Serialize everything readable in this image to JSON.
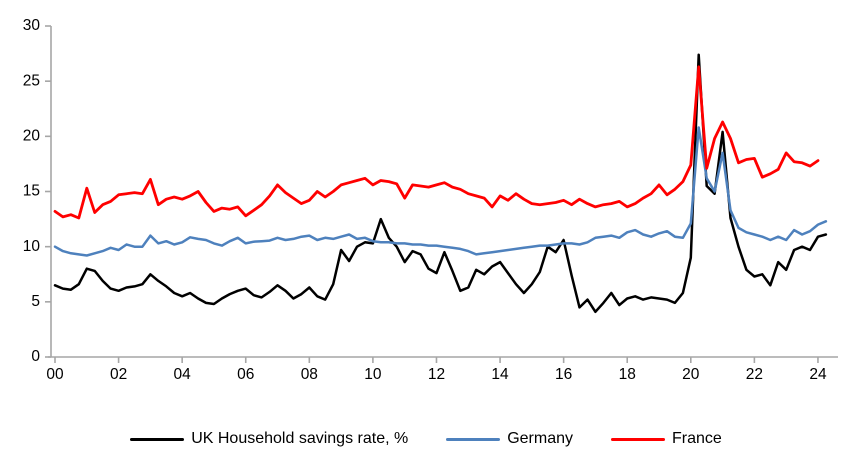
{
  "chart_data": {
    "type": "line",
    "title": "",
    "xlabel": "",
    "ylabel": "",
    "grid": false,
    "legend_position": "bottom",
    "axis_color": "#A6A6A6",
    "text_color": "#000000",
    "ylim": [
      0,
      30
    ],
    "y_ticks": [
      0,
      5,
      10,
      15,
      20,
      25,
      30
    ],
    "x_tick_labels": [
      "00",
      "02",
      "04",
      "06",
      "08",
      "10",
      "12",
      "14",
      "16",
      "18",
      "20",
      "22",
      "24"
    ],
    "x_tick_years": [
      2000,
      2002,
      2004,
      2006,
      2008,
      2010,
      2012,
      2014,
      2016,
      2018,
      2020,
      2022,
      2024
    ],
    "x_unit": "year, quarterly observations",
    "x_start": 2000.0,
    "x_step": 0.25,
    "series": [
      {
        "name": "UK Household savings rate, %",
        "color": "#000000",
        "stroke_width": 2.5,
        "values": [
          6.5,
          6.2,
          6.1,
          6.6,
          8.0,
          7.8,
          6.9,
          6.2,
          6.0,
          6.3,
          6.4,
          6.6,
          7.5,
          6.9,
          6.4,
          5.8,
          5.5,
          5.8,
          5.3,
          4.9,
          4.8,
          5.3,
          5.7,
          6.0,
          6.2,
          5.6,
          5.4,
          5.9,
          6.5,
          6.0,
          5.3,
          5.7,
          6.3,
          5.5,
          5.2,
          6.6,
          9.7,
          8.7,
          10.0,
          10.4,
          10.3,
          12.5,
          10.8,
          10.0,
          8.6,
          9.6,
          9.3,
          8.0,
          7.6,
          9.5,
          7.8,
          6.0,
          6.3,
          7.9,
          7.5,
          8.2,
          8.6,
          7.6,
          6.6,
          5.8,
          6.6,
          7.7,
          10.0,
          9.5,
          10.6,
          7.4,
          4.5,
          5.2,
          4.1,
          4.9,
          5.8,
          4.7,
          5.3,
          5.5,
          5.2,
          5.4,
          5.3,
          5.2,
          4.9,
          5.8,
          9.0,
          27.4,
          15.5,
          14.8,
          20.4,
          12.6,
          10.0,
          7.9,
          7.3,
          7.5,
          6.5,
          8.6,
          7.9,
          9.7,
          10.0,
          9.7,
          10.9,
          11.1
        ]
      },
      {
        "name": "Germany",
        "color": "#4E81BD",
        "stroke_width": 2.5,
        "values": [
          10.0,
          9.6,
          9.4,
          9.3,
          9.2,
          9.4,
          9.6,
          9.9,
          9.7,
          10.2,
          10.0,
          10.0,
          11.0,
          10.3,
          10.5,
          10.2,
          10.4,
          10.85,
          10.7,
          10.6,
          10.3,
          10.1,
          10.5,
          10.8,
          10.3,
          10.45,
          10.5,
          10.55,
          10.8,
          10.6,
          10.7,
          10.9,
          11.0,
          10.6,
          10.8,
          10.7,
          10.9,
          11.1,
          10.7,
          10.8,
          10.5,
          10.4,
          10.4,
          10.3,
          10.3,
          10.2,
          10.2,
          10.1,
          10.1,
          10.0,
          9.9,
          9.8,
          9.6,
          9.3,
          9.4,
          9.5,
          9.6,
          9.7,
          9.8,
          9.9,
          10.0,
          10.1,
          10.1,
          10.2,
          10.3,
          10.3,
          10.2,
          10.4,
          10.8,
          10.9,
          11.0,
          10.8,
          11.3,
          11.5,
          11.1,
          10.9,
          11.2,
          11.4,
          10.9,
          10.8,
          12.1,
          20.8,
          16.2,
          15.0,
          18.5,
          13.3,
          11.7,
          11.3,
          11.1,
          10.9,
          10.6,
          10.9,
          10.6,
          11.5,
          11.1,
          11.4,
          12.0,
          12.3
        ]
      },
      {
        "name": "France",
        "color": "#FF0000",
        "stroke_width": 2.8,
        "values": [
          13.2,
          12.7,
          12.9,
          12.6,
          15.3,
          13.1,
          13.8,
          14.1,
          14.7,
          14.8,
          14.9,
          14.8,
          16.1,
          13.8,
          14.3,
          14.5,
          14.3,
          14.6,
          15.0,
          14.0,
          13.2,
          13.5,
          13.4,
          13.6,
          12.8,
          13.3,
          13.8,
          14.6,
          15.6,
          14.9,
          14.4,
          13.9,
          14.2,
          15.0,
          14.5,
          15.0,
          15.6,
          15.8,
          16.0,
          16.2,
          15.6,
          16.0,
          15.9,
          15.7,
          14.4,
          15.6,
          15.5,
          15.4,
          15.6,
          15.8,
          15.4,
          15.2,
          14.8,
          14.6,
          14.4,
          13.6,
          14.6,
          14.2,
          14.8,
          14.3,
          13.9,
          13.8,
          13.9,
          14.0,
          14.2,
          13.8,
          14.3,
          13.9,
          13.6,
          13.8,
          13.9,
          14.1,
          13.6,
          13.9,
          14.4,
          14.8,
          15.6,
          14.7,
          15.2,
          15.9,
          17.4,
          26.3,
          17.1,
          19.8,
          21.3,
          19.8,
          17.6,
          17.9,
          18.0,
          16.3,
          16.6,
          17.0,
          18.5,
          17.7,
          17.6,
          17.3,
          17.8
        ]
      }
    ]
  },
  "legend": {
    "items": [
      {
        "label": "UK Household savings rate, %"
      },
      {
        "label": "Germany"
      },
      {
        "label": "France"
      }
    ]
  }
}
